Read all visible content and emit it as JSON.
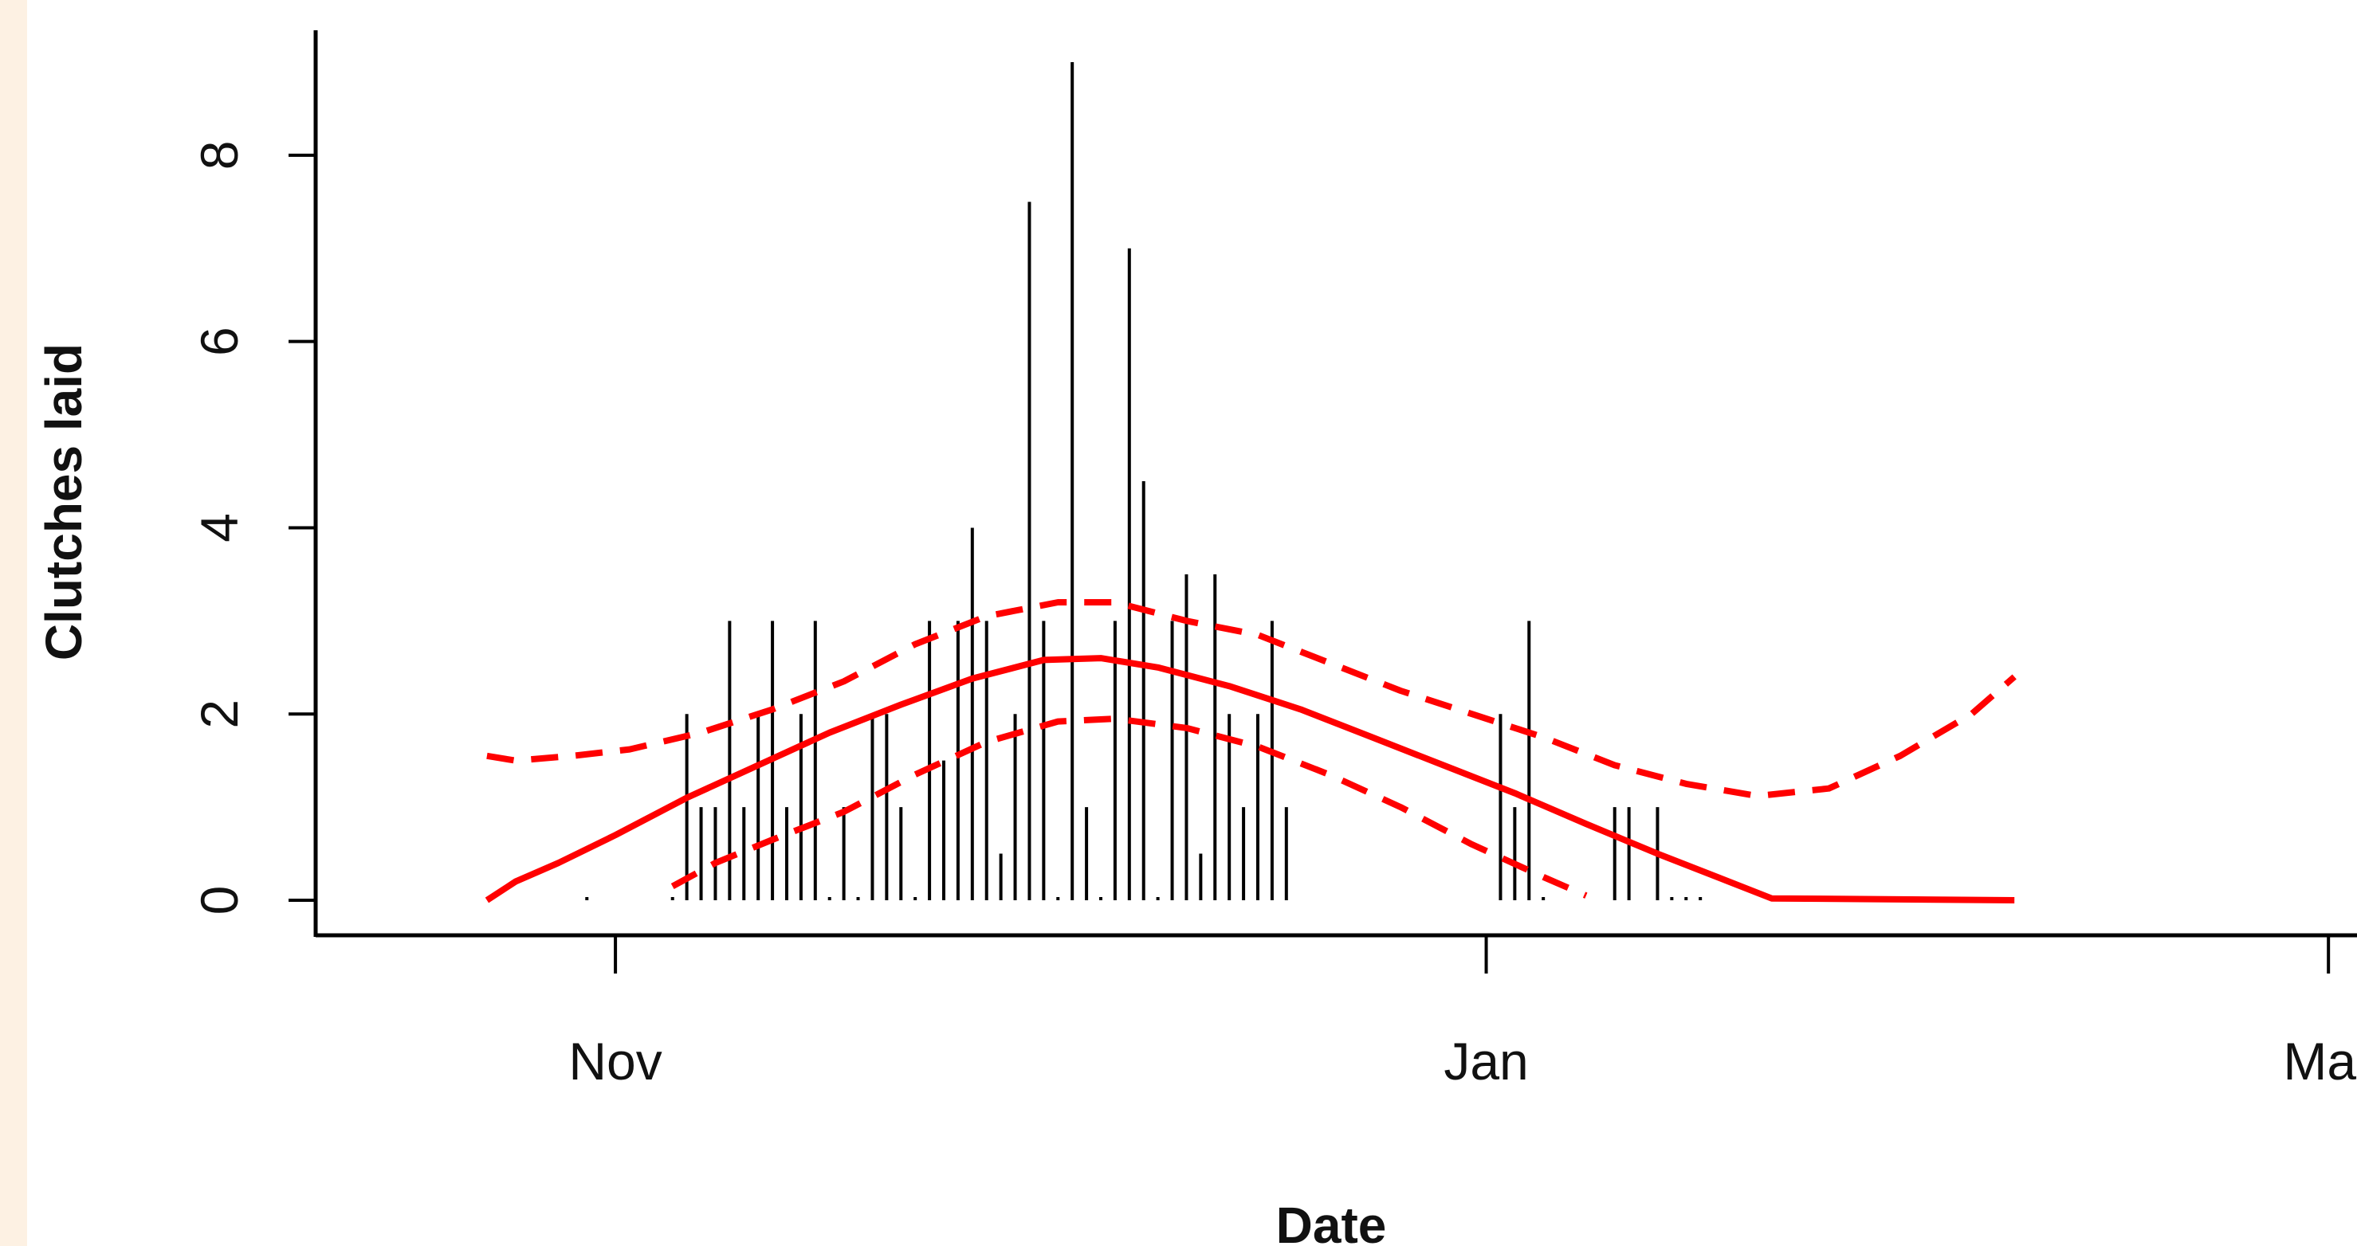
{
  "chart_data": {
    "type": "bar",
    "xlabel": "Date",
    "ylabel": "Clutches laid",
    "y_ticks": [
      0,
      2,
      4,
      6,
      8
    ],
    "ylim": [
      0,
      9
    ],
    "xlim": [
      "2006-10-11",
      "2007-03-03"
    ],
    "x_ticks": [
      {
        "label": "Nov",
        "date": "2006-11-01"
      },
      {
        "label": "Jan",
        "date": "2007-01-01"
      },
      {
        "label": "Mar",
        "date": "2007-03-01"
      }
    ],
    "grid": false,
    "colors": {
      "bars": "#000000",
      "fit": "#ff0000",
      "strip": "#fdf1e3"
    },
    "series": [
      {
        "kind": "bars",
        "points": [
          {
            "x": "2006-10-30",
            "y": 0
          },
          {
            "x": "2006-11-05",
            "y": 0
          },
          {
            "x": "2006-11-06",
            "y": 2
          },
          {
            "x": "2006-11-07",
            "y": 1
          },
          {
            "x": "2006-11-08",
            "y": 1
          },
          {
            "x": "2006-11-09",
            "y": 3
          },
          {
            "x": "2006-11-10",
            "y": 1
          },
          {
            "x": "2006-11-11",
            "y": 2
          },
          {
            "x": "2006-11-12",
            "y": 3
          },
          {
            "x": "2006-11-13",
            "y": 1
          },
          {
            "x": "2006-11-14",
            "y": 2
          },
          {
            "x": "2006-11-15",
            "y": 3
          },
          {
            "x": "2006-11-16",
            "y": 0
          },
          {
            "x": "2006-11-17",
            "y": 1
          },
          {
            "x": "2006-11-18",
            "y": 0
          },
          {
            "x": "2006-11-19",
            "y": 2
          },
          {
            "x": "2006-11-20",
            "y": 2
          },
          {
            "x": "2006-11-21",
            "y": 1
          },
          {
            "x": "2006-11-22",
            "y": 0
          },
          {
            "x": "2006-11-23",
            "y": 3
          },
          {
            "x": "2006-11-24",
            "y": 1.5
          },
          {
            "x": "2006-11-25",
            "y": 3
          },
          {
            "x": "2006-11-26",
            "y": 4
          },
          {
            "x": "2006-11-27",
            "y": 3
          },
          {
            "x": "2006-11-28",
            "y": 0.5
          },
          {
            "x": "2006-11-29",
            "y": 2
          },
          {
            "x": "2006-11-30",
            "y": 7.5
          },
          {
            "x": "2006-12-01",
            "y": 3
          },
          {
            "x": "2006-12-02",
            "y": 0
          },
          {
            "x": "2006-12-03",
            "y": 9
          },
          {
            "x": "2006-12-04",
            "y": 1
          },
          {
            "x": "2006-12-05",
            "y": 0
          },
          {
            "x": "2006-12-06",
            "y": 3
          },
          {
            "x": "2006-12-07",
            "y": 7
          },
          {
            "x": "2006-12-08",
            "y": 4.5
          },
          {
            "x": "2006-12-09",
            "y": 0
          },
          {
            "x": "2006-12-10",
            "y": 3
          },
          {
            "x": "2006-12-11",
            "y": 3.5
          },
          {
            "x": "2006-12-12",
            "y": 0.5
          },
          {
            "x": "2006-12-13",
            "y": 3.5
          },
          {
            "x": "2006-12-14",
            "y": 2
          },
          {
            "x": "2006-12-15",
            "y": 1
          },
          {
            "x": "2006-12-16",
            "y": 2
          },
          {
            "x": "2006-12-17",
            "y": 3
          },
          {
            "x": "2006-12-18",
            "y": 1
          },
          {
            "x": "2007-01-02",
            "y": 2
          },
          {
            "x": "2007-01-03",
            "y": 1
          },
          {
            "x": "2007-01-04",
            "y": 3
          },
          {
            "x": "2007-01-05",
            "y": 0
          },
          {
            "x": "2007-01-10",
            "y": 1
          },
          {
            "x": "2007-01-11",
            "y": 1
          },
          {
            "x": "2007-01-13",
            "y": 1
          },
          {
            "x": "2007-01-14",
            "y": 0
          },
          {
            "x": "2007-01-15",
            "y": 0
          },
          {
            "x": "2007-01-16",
            "y": 0
          }
        ]
      },
      {
        "kind": "fit-line",
        "style": "solid",
        "points": [
          {
            "x": "2006-10-23",
            "y": 0
          },
          {
            "x": "2006-10-25",
            "y": 0.2
          },
          {
            "x": "2006-10-28",
            "y": 0.4
          },
          {
            "x": "2006-11-01",
            "y": 0.7
          },
          {
            "x": "2006-11-06",
            "y": 1.1
          },
          {
            "x": "2006-11-11",
            "y": 1.45
          },
          {
            "x": "2006-11-16",
            "y": 1.8
          },
          {
            "x": "2006-11-21",
            "y": 2.1
          },
          {
            "x": "2006-11-26",
            "y": 2.38
          },
          {
            "x": "2006-12-01",
            "y": 2.58
          },
          {
            "x": "2006-12-05",
            "y": 2.6
          },
          {
            "x": "2006-12-09",
            "y": 2.5
          },
          {
            "x": "2006-12-14",
            "y": 2.3
          },
          {
            "x": "2006-12-19",
            "y": 2.05
          },
          {
            "x": "2006-12-24",
            "y": 1.75
          },
          {
            "x": "2006-12-29",
            "y": 1.45
          },
          {
            "x": "2007-01-03",
            "y": 1.15
          },
          {
            "x": "2007-01-08",
            "y": 0.82
          },
          {
            "x": "2007-01-13",
            "y": 0.5
          },
          {
            "x": "2007-01-18",
            "y": 0.2
          },
          {
            "x": "2007-01-21",
            "y": 0.02
          },
          {
            "x": "2007-02-07",
            "y": 0
          }
        ]
      },
      {
        "kind": "upper-band",
        "style": "dashed",
        "points": [
          {
            "x": "2006-10-23",
            "y": 1.55
          },
          {
            "x": "2006-10-25",
            "y": 1.5
          },
          {
            "x": "2006-10-29",
            "y": 1.55
          },
          {
            "x": "2006-11-02",
            "y": 1.62
          },
          {
            "x": "2006-11-07",
            "y": 1.8
          },
          {
            "x": "2006-11-12",
            "y": 2.05
          },
          {
            "x": "2006-11-17",
            "y": 2.35
          },
          {
            "x": "2006-11-22",
            "y": 2.75
          },
          {
            "x": "2006-11-27",
            "y": 3.05
          },
          {
            "x": "2006-12-02",
            "y": 3.2
          },
          {
            "x": "2006-12-06",
            "y": 3.2
          },
          {
            "x": "2006-12-11",
            "y": 3.0
          },
          {
            "x": "2006-12-16",
            "y": 2.85
          },
          {
            "x": "2006-12-21",
            "y": 2.55
          },
          {
            "x": "2006-12-26",
            "y": 2.25
          },
          {
            "x": "2006-12-31",
            "y": 2.0
          },
          {
            "x": "2007-01-05",
            "y": 1.75
          },
          {
            "x": "2007-01-10",
            "y": 1.45
          },
          {
            "x": "2007-01-15",
            "y": 1.25
          },
          {
            "x": "2007-01-20",
            "y": 1.12
          },
          {
            "x": "2007-01-25",
            "y": 1.2
          },
          {
            "x": "2007-01-30",
            "y": 1.55
          },
          {
            "x": "2007-02-04",
            "y": 2.0
          },
          {
            "x": "2007-02-07",
            "y": 2.4
          }
        ]
      },
      {
        "kind": "lower-band",
        "style": "dashed",
        "points": [
          {
            "x": "2006-11-05",
            "y": 0.15
          },
          {
            "x": "2006-11-08",
            "y": 0.4
          },
          {
            "x": "2006-11-12",
            "y": 0.65
          },
          {
            "x": "2006-11-17",
            "y": 0.95
          },
          {
            "x": "2006-11-22",
            "y": 1.35
          },
          {
            "x": "2006-11-27",
            "y": 1.7
          },
          {
            "x": "2006-12-02",
            "y": 1.92
          },
          {
            "x": "2006-12-06",
            "y": 1.95
          },
          {
            "x": "2006-12-11",
            "y": 1.85
          },
          {
            "x": "2006-12-16",
            "y": 1.65
          },
          {
            "x": "2006-12-21",
            "y": 1.35
          },
          {
            "x": "2006-12-26",
            "y": 1.0
          },
          {
            "x": "2006-12-31",
            "y": 0.6
          },
          {
            "x": "2007-01-05",
            "y": 0.25
          },
          {
            "x": "2007-01-08",
            "y": 0.05
          }
        ]
      }
    ]
  }
}
